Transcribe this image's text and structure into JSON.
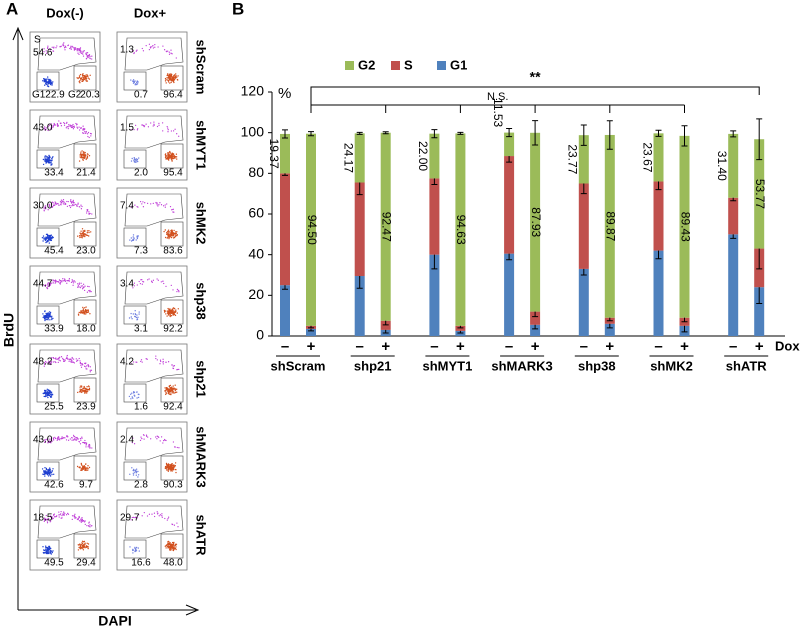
{
  "panel_a": {
    "label": "A",
    "columns": [
      "Dox(-)",
      "Dox+"
    ],
    "y_label": "BrdU",
    "x_label": "DAPI",
    "gate_labels": [
      "S",
      "G1",
      "G2"
    ],
    "rows": [
      {
        "name": "shScram",
        "plots": [
          {
            "S": "54.6",
            "G1": "22.9",
            "G2": "20.3"
          },
          {
            "S": "1.3",
            "G1": "0.7",
            "G2": "96.4"
          }
        ]
      },
      {
        "name": "shMYT1",
        "plots": [
          {
            "S": "43.0",
            "G1": "33.4",
            "G2": "21.4"
          },
          {
            "S": "1.5",
            "G1": "2.0",
            "G2": "95.4"
          }
        ]
      },
      {
        "name": "shMK2",
        "plots": [
          {
            "S": "30.0",
            "G1": "45.4",
            "G2": "23.0"
          },
          {
            "S": "7.4",
            "G1": "7.3",
            "G2": "83.6"
          }
        ]
      },
      {
        "name": "shp38",
        "plots": [
          {
            "S": "44.7",
            "G1": "33.9",
            "G2": "18.0"
          },
          {
            "S": "3.4",
            "G1": "3.1",
            "G2": "92.2"
          }
        ]
      },
      {
        "name": "shp21",
        "plots": [
          {
            "S": "48.2",
            "G1": "25.5",
            "G2": "23.9"
          },
          {
            "S": "4.2",
            "G1": "1.6",
            "G2": "92.4"
          }
        ]
      },
      {
        "name": "shMARK3",
        "plots": [
          {
            "S": "43.0",
            "G1": "42.6",
            "G2": "9.7"
          },
          {
            "S": "2.4",
            "G1": "2.8",
            "G2": "90.3"
          }
        ]
      },
      {
        "name": "shATR",
        "plots": [
          {
            "S": "18.5",
            "G1": "49.5",
            "G2": "29.4"
          },
          {
            "S": "29.7",
            "G1": "16.6",
            "G2": "48.0"
          }
        ]
      }
    ]
  },
  "chart_data": {
    "type": "bar",
    "stacked": true,
    "panel_label": "B",
    "y_label": "%",
    "x_label": "Dox",
    "categories": [
      "–",
      "+",
      "–",
      "+",
      "–",
      "+",
      "–",
      "+",
      "–",
      "+",
      "–",
      "+",
      "–",
      "+"
    ],
    "groups": [
      "shScram",
      "shp21",
      "shMYT1",
      "shMARK3",
      "shp38",
      "shMK2",
      "shATR"
    ],
    "annotations": [
      "**",
      "N.S."
    ],
    "series": [
      {
        "name": "G1",
        "color": "#4f81bd",
        "values": [
          25,
          3.5,
          29.5,
          3,
          40,
          2.5,
          40.5,
          5.5,
          33,
          6,
          42,
          5,
          50,
          24
        ],
        "errors": [
          2,
          1,
          6,
          1.5,
          7,
          1,
          3,
          2,
          3,
          2,
          4,
          3,
          2,
          8
        ]
      },
      {
        "name": "S",
        "color": "#c0504d",
        "values": [
          55,
          1.5,
          46,
          4.5,
          37.5,
          2.5,
          48,
          6.5,
          42,
          3,
          34,
          4,
          18,
          19
        ],
        "errors": [
          1,
          1,
          6,
          2,
          3,
          1,
          3,
          2.5,
          5,
          1.5,
          4,
          2,
          1.5,
          10
        ]
      },
      {
        "name": "G2",
        "color": "#9bbb59",
        "values": [
          19.37,
          94.5,
          24.17,
          92.47,
          22,
          94.63,
          11.53,
          87.93,
          23.77,
          89.87,
          23.67,
          89.43,
          31.4,
          53.77
        ],
        "value_labels": [
          "19.37",
          "94.50",
          "24.17",
          "92.47",
          "22.00",
          "94.63",
          "11.53",
          "87.93",
          "23.77",
          "89.87",
          "23.67",
          "89.43",
          "31.40",
          "53.77"
        ],
        "errors": [
          2,
          1,
          0.5,
          0.5,
          2,
          0.5,
          2,
          6,
          5,
          7,
          1.5,
          5,
          1.5,
          10
        ]
      }
    ],
    "ylim": [
      0,
      120
    ],
    "yticks": [
      0,
      20,
      40,
      60,
      80,
      100,
      120
    ],
    "grid": false,
    "legend": "top"
  }
}
